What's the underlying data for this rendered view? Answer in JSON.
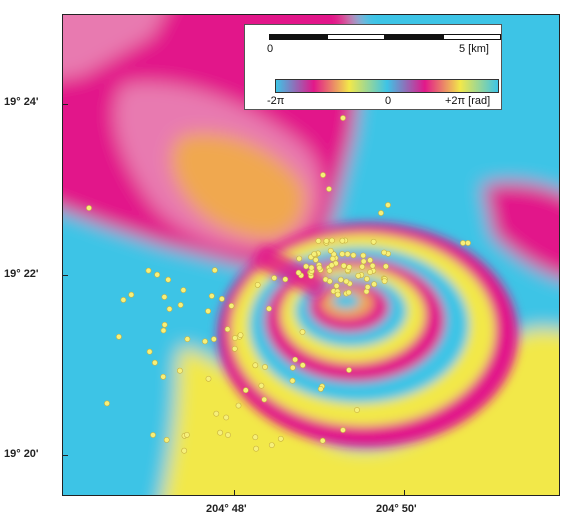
{
  "axes": {
    "lat_labels": [
      "19° 24'",
      "19° 22'",
      "19° 20'"
    ],
    "lon_labels": [
      "204° 48'",
      "204° 50'"
    ]
  },
  "scale": {
    "start": "0",
    "end": "5 [km]"
  },
  "colorbar": {
    "min": "-2π",
    "mid": "0",
    "max": "+2π [rad]",
    "colors": [
      "#3ec4e6",
      "#e2188a",
      "#f2e84a",
      "#3ec4e6",
      "#e2188a",
      "#f2e84a",
      "#3ec4e6"
    ]
  },
  "palette": {
    "cyan": "#3ec4e6",
    "magenta": "#e2188a",
    "yellow": "#f2e84a",
    "orange": "#f0a850",
    "pink": "#e87ab0",
    "dot": "#f6f07a"
  }
}
